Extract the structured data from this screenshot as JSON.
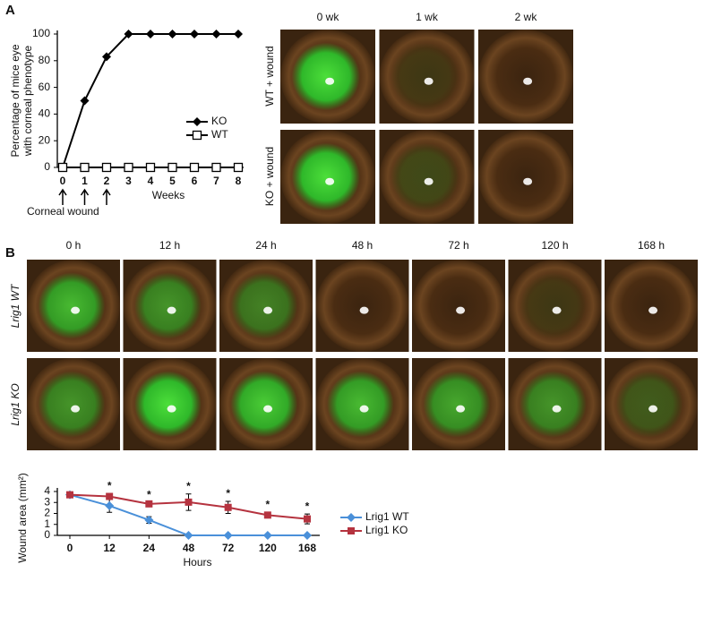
{
  "panel_labels": [
    "A",
    "B"
  ],
  "photos_a": {
    "columns": [
      "0 wk",
      "1 wk",
      "2 wk"
    ],
    "rows": [
      "WT + wound",
      "KO + wound"
    ]
  },
  "photos_b": {
    "columns": [
      "0 h",
      "12 h",
      "24 h",
      "48 h",
      "72 h",
      "120 h",
      "168 h"
    ],
    "rows": [
      "Lrig1 WT",
      "Lrig1 KO"
    ]
  },
  "chart_data": [
    {
      "type": "line",
      "ylabel": [
        "Percentage of mice eye",
        "with corneal phenotype"
      ],
      "xlabel": "Weeks",
      "x": [
        0,
        1,
        2,
        3,
        4,
        5,
        6,
        7,
        8
      ],
      "xlim": [
        0,
        8
      ],
      "xticks": [
        0,
        1,
        2,
        3,
        4,
        5,
        6,
        7,
        8
      ],
      "ylim": [
        0,
        100
      ],
      "yticks": [
        0,
        20,
        40,
        60,
        80,
        100
      ],
      "series": [
        {
          "name": "KO",
          "color": "#000000",
          "marker": "diamond",
          "values": [
            0,
            50,
            83,
            100,
            100,
            100,
            100,
            100,
            100
          ]
        },
        {
          "name": "WT",
          "color": "#000000",
          "marker": "open-square",
          "values": [
            0,
            0,
            0,
            0,
            0,
            0,
            0,
            0,
            0
          ]
        }
      ],
      "annotation": "Corneal wound",
      "annotation_x": [
        0,
        1,
        2
      ],
      "legend": "right"
    },
    {
      "type": "line",
      "ylabel": "Wound area (mm²)",
      "xlabel": "Hours",
      "categories": [
        "0",
        "12",
        "24",
        "48",
        "72",
        "120",
        "168"
      ],
      "ylim": [
        0,
        4
      ],
      "yticks": [
        0,
        1,
        2,
        3,
        4
      ],
      "series": [
        {
          "name": "Lrig1 WT",
          "color": "#4a90d9",
          "marker": "diamond",
          "values": [
            3.7,
            2.7,
            1.4,
            0,
            0,
            0,
            0
          ],
          "errors": [
            0.2,
            0.6,
            0.3,
            0,
            0,
            0,
            0
          ]
        },
        {
          "name": "Lrig1 KO",
          "color": "#b5333f",
          "marker": "square",
          "values": [
            3.7,
            3.55,
            2.87,
            3.03,
            2.55,
            1.85,
            1.5
          ],
          "errors": [
            0.15,
            0.25,
            0.12,
            0.75,
            0.55,
            0.25,
            0.45
          ]
        }
      ],
      "significance": [
        null,
        "*",
        "*",
        "*",
        "*",
        "*",
        "*"
      ],
      "legend": "right"
    }
  ]
}
